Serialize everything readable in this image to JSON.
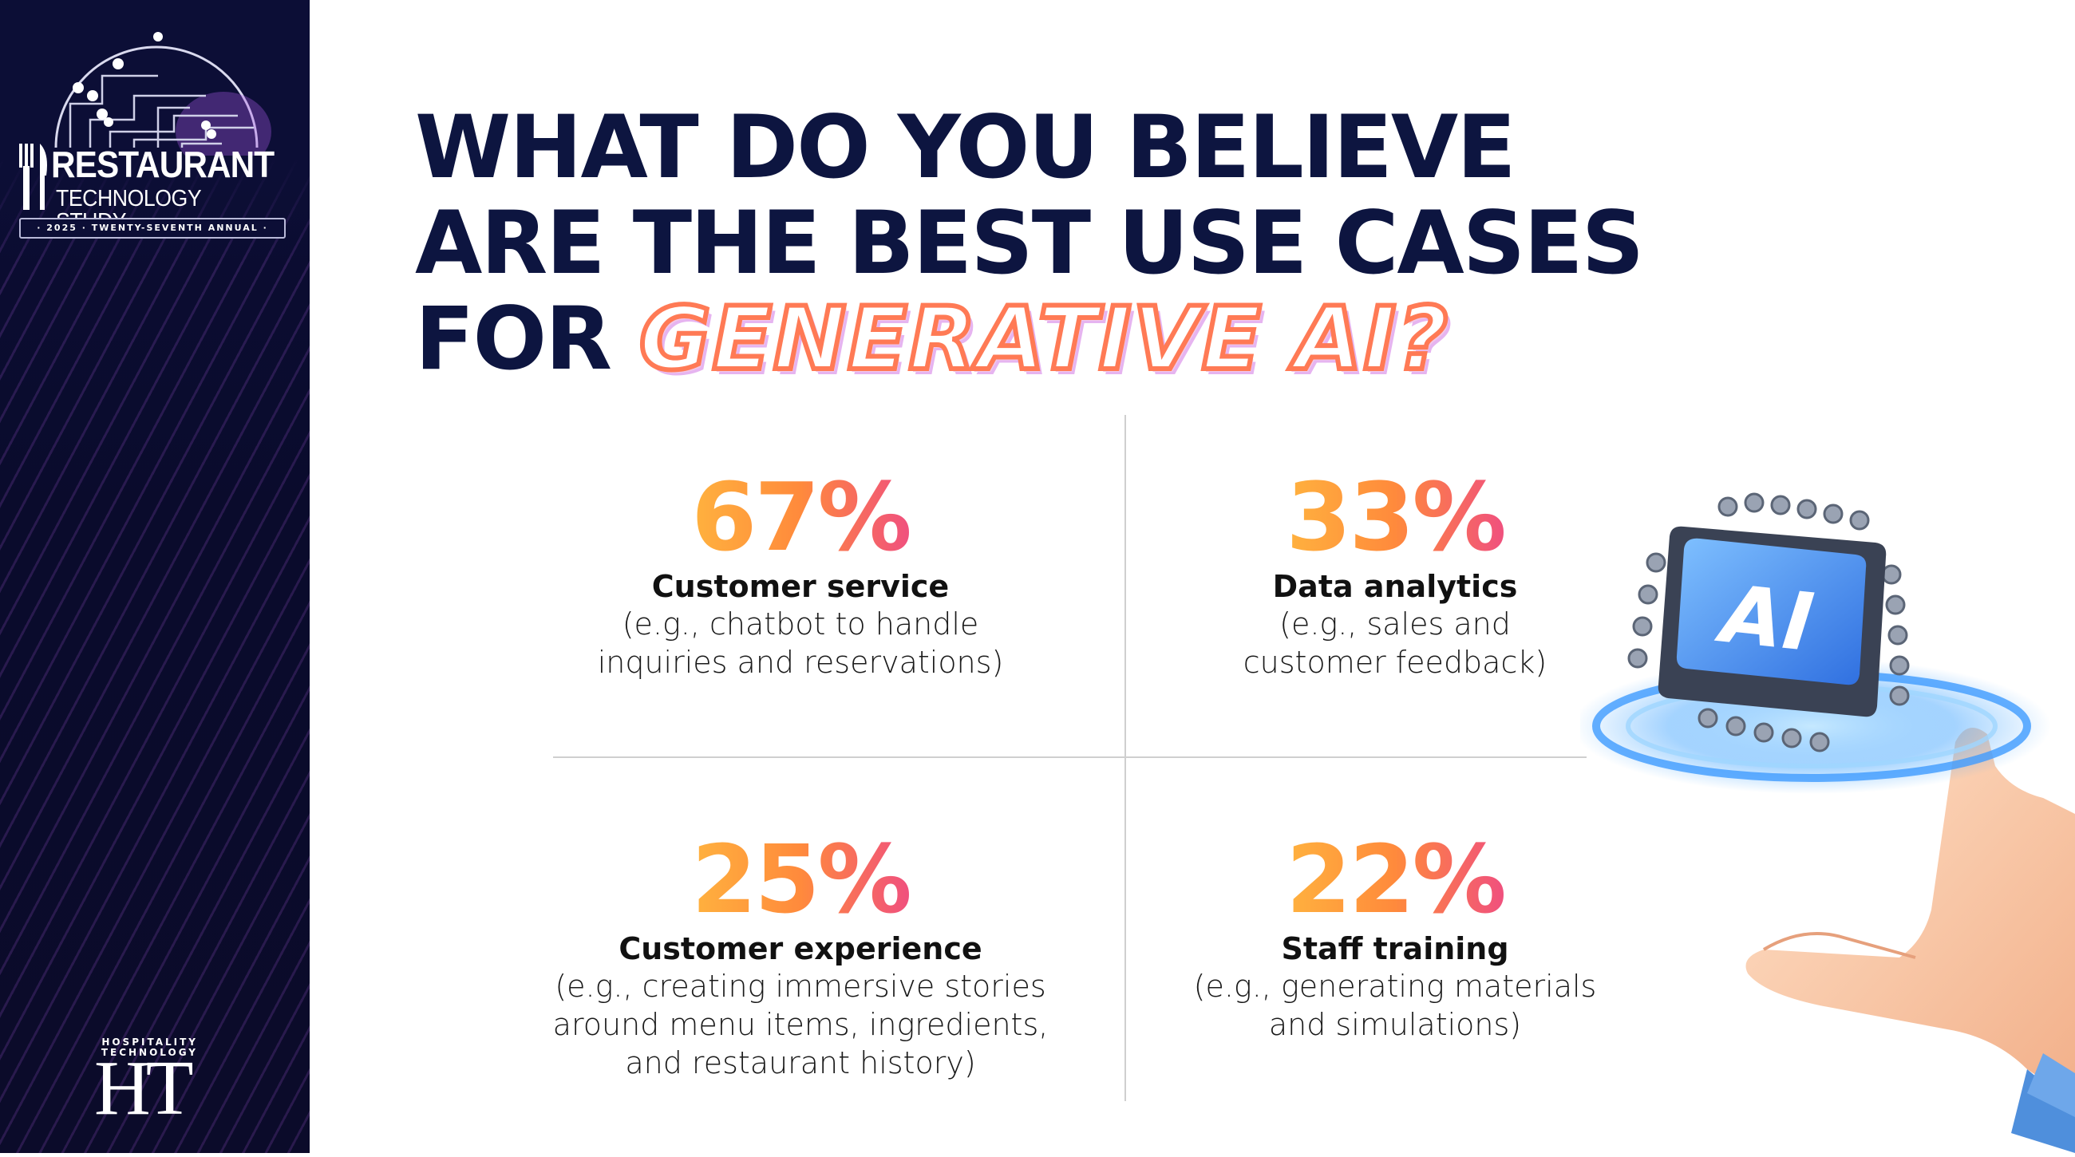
{
  "brand": {
    "title": "RESTAURANT",
    "subtitle": "TECHNOLOGY STUDY",
    "band": "· 2025 · TWENTY-SEVENTH ANNUAL ·",
    "publisher_small_line1": "HOSPITALITY",
    "publisher_small_line2": "TECHNOLOGY",
    "publisher_big": "HT"
  },
  "heading": {
    "line1": "WHAT DO YOU BELIEVE",
    "line2": "ARE THE BEST USE CASES",
    "line3_prefix": "FOR ",
    "line3_highlight": "GENERATIVE AI?"
  },
  "results": [
    {
      "percent": "67%",
      "label": "Customer service",
      "desc": [
        "(e.g., chatbot to handle",
        "inquiries and reservations)"
      ]
    },
    {
      "percent": "33%",
      "label": "Data analytics",
      "desc": [
        "(e.g., sales and",
        "customer feedback)"
      ]
    },
    {
      "percent": "25%",
      "label": "Customer experience",
      "desc": [
        "(e.g., creating immersive stories",
        "around menu items, ingredients,",
        "and restaurant history)"
      ]
    },
    {
      "percent": "22%",
      "label": "Staff training",
      "desc": [
        "(e.g., generating materials",
        "and simulations)"
      ]
    }
  ],
  "illustration": {
    "chip_text": "AI"
  },
  "colors": {
    "sidebar_bg": "#0c0e36",
    "heading": "#0d1540",
    "percent_gradient_start": "#ffb23e",
    "percent_gradient_end": "#f0507e",
    "chip_blue": "#3f8ef0"
  }
}
